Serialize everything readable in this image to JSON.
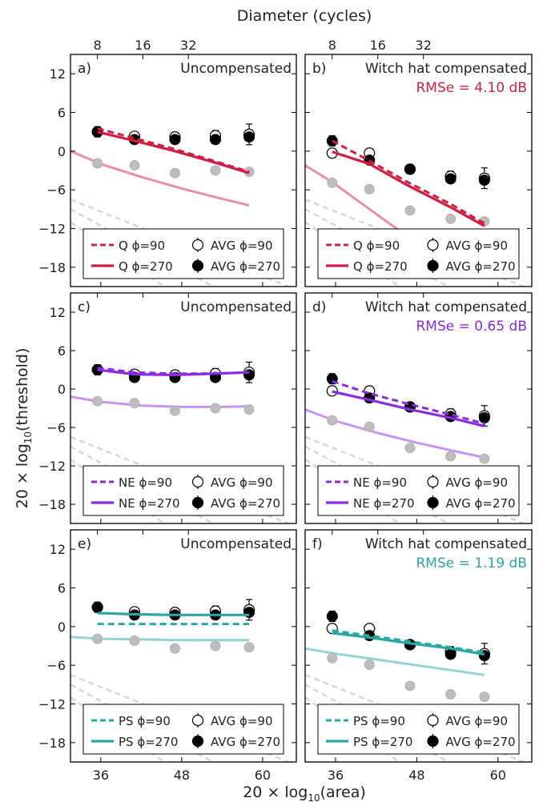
{
  "figure": {
    "top_axis_label": "Diameter (cycles)",
    "top_ticks": [
      8,
      16,
      32
    ],
    "ylabel_prefix": "20 × log",
    "ylabel_sub": "10",
    "ylabel_suffix": "(threshold)",
    "xlabel_prefix": "20 × log",
    "xlabel_sub": "10",
    "xlabel_suffix": "(area)",
    "x_ticks": [
      36,
      48,
      60
    ],
    "y_ticks": [
      12,
      6,
      0,
      -6,
      -12,
      -18
    ]
  },
  "chart_data": [
    {
      "type": "line",
      "panel": "a)",
      "title": "Uncompensated",
      "rmse": "",
      "model": "Q",
      "color": "#d11f41",
      "xlim": [
        31.5,
        65
      ],
      "ylim": [
        -21,
        15
      ],
      "legend": [
        "Q ϕ=90",
        "AVG ϕ=90",
        "Q ϕ=270",
        "AVG ϕ=270"
      ],
      "series": [
        {
          "name": "Q ϕ=90",
          "style": "dashed",
          "x": [
            35.5,
            41,
            47,
            53,
            58
          ],
          "y": [
            3.5,
            2.0,
            0.3,
            -1.6,
            -3.2
          ]
        },
        {
          "name": "Q ϕ=270",
          "style": "solid",
          "x": [
            35.5,
            41,
            47,
            53,
            58
          ],
          "y": [
            3.0,
            1.6,
            0.0,
            -1.8,
            -3.4
          ]
        },
        {
          "name": "",
          "style": "light",
          "x": [
            31.5,
            36,
            42,
            48,
            54,
            58
          ],
          "y": [
            0.0,
            -2.0,
            -4.0,
            -5.8,
            -7.4,
            -8.4
          ]
        },
        {
          "name": "AVG ϕ=90",
          "style": "open",
          "x": [
            35.5,
            41,
            47,
            53,
            58
          ],
          "y": [
            3.0,
            2.3,
            2.2,
            2.4,
            2.6
          ],
          "err": [
            0.6,
            0.6,
            0.7,
            0.8,
            1.6
          ]
        },
        {
          "name": "AVG ϕ=270",
          "style": "filled",
          "x": [
            35.5,
            41,
            47,
            53,
            58
          ],
          "y": [
            3.0,
            1.8,
            1.8,
            1.8,
            2.2
          ],
          "err": [
            0.8,
            0.5,
            0.5,
            0.5,
            0.6
          ]
        },
        {
          "name": "",
          "style": "gray",
          "x": [
            35.5,
            41,
            47,
            53,
            58
          ],
          "y": [
            -1.9,
            -2.2,
            -3.4,
            -3.0,
            -3.2
          ]
        }
      ]
    },
    {
      "type": "line",
      "panel": "b)",
      "title": "Witch hat compensated",
      "rmse": "RMSe = 4.10 dB",
      "model": "Q",
      "color": "#d11f41",
      "xlim": [
        31.5,
        65
      ],
      "ylim": [
        -21,
        15
      ],
      "legend": [
        "Q ϕ=90",
        "AVG ϕ=90",
        "Q ϕ=270",
        "AVG ϕ=270"
      ],
      "series": [
        {
          "name": "Q ϕ=90",
          "style": "dashed",
          "x": [
            35.5,
            41,
            47,
            53,
            58
          ],
          "y": [
            1.6,
            -1.5,
            -5.0,
            -8.2,
            -11.2
          ]
        },
        {
          "name": "Q ϕ=270",
          "style": "solid",
          "x": [
            35.5,
            41,
            47,
            53,
            58
          ],
          "y": [
            -0.1,
            -2.0,
            -5.5,
            -8.7,
            -11.6
          ]
        },
        {
          "name": "",
          "style": "light",
          "x": [
            31.5,
            35.5,
            41,
            47,
            52
          ],
          "y": [
            -2.2,
            -4.8,
            -9.0,
            -13.5,
            -17.5
          ]
        },
        {
          "name": "AVG ϕ=90",
          "style": "open",
          "x": [
            35.5,
            41,
            47,
            53,
            58
          ],
          "y": [
            -0.3,
            -0.3,
            -2.8,
            -3.9,
            -4.2
          ],
          "err": [
            0.6,
            0.6,
            0.7,
            0.8,
            1.6
          ]
        },
        {
          "name": "AVG ϕ=270",
          "style": "filled",
          "x": [
            35.5,
            41,
            47,
            53,
            58
          ],
          "y": [
            1.6,
            -1.4,
            -2.8,
            -4.3,
            -4.5
          ],
          "err": [
            0.8,
            0.5,
            0.5,
            0.5,
            0.6
          ]
        },
        {
          "name": "",
          "style": "gray",
          "x": [
            35.5,
            41,
            47,
            53,
            58
          ],
          "y": [
            -4.9,
            -5.9,
            -9.2,
            -10.5,
            -10.9
          ]
        }
      ]
    },
    {
      "type": "line",
      "panel": "c)",
      "title": "Uncompensated",
      "rmse": "",
      "model": "NE",
      "color": "#8a2be2",
      "xlim": [
        31.5,
        65
      ],
      "ylim": [
        -21,
        15
      ],
      "legend": [
        "NE ϕ=90",
        "AVG ϕ=90",
        "NE ϕ=270",
        "AVG ϕ=270"
      ],
      "series": [
        {
          "name": "NE ϕ=90",
          "style": "dashed",
          "x": [
            35.5,
            41,
            47,
            53,
            58
          ],
          "y": [
            3.3,
            2.6,
            2.4,
            2.4,
            2.6
          ]
        },
        {
          "name": "NE ϕ=270",
          "style": "solid",
          "x": [
            35.5,
            41,
            47,
            53,
            58
          ],
          "y": [
            3.0,
            2.3,
            2.2,
            2.4,
            2.6
          ]
        },
        {
          "name": "",
          "style": "light",
          "x": [
            31.5,
            36,
            42,
            48,
            54,
            58
          ],
          "y": [
            -1.2,
            -2.0,
            -2.6,
            -2.8,
            -2.8,
            -2.7
          ]
        },
        {
          "name": "AVG ϕ=90",
          "style": "open",
          "x": [
            35.5,
            41,
            47,
            53,
            58
          ],
          "y": [
            3.0,
            2.3,
            2.2,
            2.4,
            2.6
          ],
          "err": [
            0.6,
            0.6,
            0.7,
            0.8,
            1.6
          ]
        },
        {
          "name": "AVG ϕ=270",
          "style": "filled",
          "x": [
            35.5,
            41,
            47,
            53,
            58
          ],
          "y": [
            3.0,
            1.8,
            1.8,
            1.8,
            2.2
          ],
          "err": [
            0.8,
            0.5,
            0.5,
            0.5,
            0.6
          ]
        },
        {
          "name": "",
          "style": "gray",
          "x": [
            35.5,
            41,
            47,
            53,
            58
          ],
          "y": [
            -1.9,
            -2.2,
            -3.4,
            -3.0,
            -3.2
          ]
        }
      ]
    },
    {
      "type": "line",
      "panel": "d)",
      "title": "Witch hat compensated",
      "rmse": "RMSe = 0.65 dB",
      "model": "NE",
      "color": "#8a2be2",
      "xlim": [
        31.5,
        65
      ],
      "ylim": [
        -21,
        15
      ],
      "legend": [
        "NE ϕ=90",
        "AVG ϕ=90",
        "NE ϕ=270",
        "AVG ϕ=270"
      ],
      "series": [
        {
          "name": "NE ϕ=90",
          "style": "dashed",
          "x": [
            35.5,
            41,
            47,
            53,
            58
          ],
          "y": [
            1.2,
            -0.7,
            -2.4,
            -4.0,
            -5.4
          ]
        },
        {
          "name": "NE ϕ=270",
          "style": "solid",
          "x": [
            35.5,
            41,
            47,
            53,
            58
          ],
          "y": [
            -0.4,
            -1.7,
            -3.2,
            -4.5,
            -5.8
          ]
        },
        {
          "name": "",
          "style": "light",
          "x": [
            31.5,
            36,
            42,
            48,
            54,
            58
          ],
          "y": [
            -3.2,
            -5.0,
            -6.8,
            -8.4,
            -9.8,
            -10.7
          ]
        },
        {
          "name": "AVG ϕ=90",
          "style": "open",
          "x": [
            35.5,
            41,
            47,
            53,
            58
          ],
          "y": [
            -0.3,
            -0.3,
            -2.8,
            -3.9,
            -4.2
          ],
          "err": [
            0.6,
            0.6,
            0.7,
            0.8,
            1.6
          ]
        },
        {
          "name": "AVG ϕ=270",
          "style": "filled",
          "x": [
            35.5,
            41,
            47,
            53,
            58
          ],
          "y": [
            1.6,
            -1.4,
            -2.8,
            -4.3,
            -4.5
          ],
          "err": [
            0.8,
            0.5,
            0.5,
            0.5,
            0.6
          ]
        },
        {
          "name": "",
          "style": "gray",
          "x": [
            35.5,
            41,
            47,
            53,
            58
          ],
          "y": [
            -4.9,
            -5.9,
            -9.2,
            -10.5,
            -10.9
          ]
        }
      ]
    },
    {
      "type": "line",
      "panel": "e)",
      "title": "Uncompensated",
      "rmse": "",
      "model": "PS",
      "color": "#2aa6a0",
      "xlim": [
        31.5,
        65
      ],
      "ylim": [
        -21,
        15
      ],
      "legend": [
        "PS ϕ=90",
        "AVG ϕ=90",
        "PS ϕ=270",
        "AVG ϕ=270"
      ],
      "series": [
        {
          "name": "PS ϕ=90",
          "style": "dashed",
          "x": [
            35.5,
            41,
            47,
            53,
            58
          ],
          "y": [
            0.4,
            0.4,
            0.4,
            0.4,
            0.4
          ]
        },
        {
          "name": "PS ϕ=270",
          "style": "solid",
          "x": [
            35.5,
            41,
            47,
            53,
            58
          ],
          "y": [
            2.1,
            1.9,
            1.8,
            1.8,
            1.8
          ]
        },
        {
          "name": "",
          "style": "light",
          "x": [
            31.5,
            36,
            42,
            48,
            54,
            58
          ],
          "y": [
            -1.6,
            -1.9,
            -2.0,
            -2.1,
            -2.1,
            -2.1
          ]
        },
        {
          "name": "AVG ϕ=90",
          "style": "open",
          "x": [
            35.5,
            41,
            47,
            53,
            58
          ],
          "y": [
            3.0,
            2.3,
            2.2,
            2.4,
            2.6
          ],
          "err": [
            0.6,
            0.6,
            0.7,
            0.8,
            1.6
          ]
        },
        {
          "name": "AVG ϕ=270",
          "style": "filled",
          "x": [
            35.5,
            41,
            47,
            53,
            58
          ],
          "y": [
            3.0,
            1.8,
            1.8,
            1.8,
            2.2
          ],
          "err": [
            0.8,
            0.5,
            0.5,
            0.5,
            0.6
          ]
        },
        {
          "name": "",
          "style": "gray",
          "x": [
            35.5,
            41,
            47,
            53,
            58
          ],
          "y": [
            -1.9,
            -2.2,
            -3.4,
            -3.0,
            -3.2
          ]
        }
      ]
    },
    {
      "type": "line",
      "panel": "f)",
      "title": "Witch hat compensated",
      "rmse": "RMSe = 1.19 dB",
      "model": "PS",
      "color": "#2aa6a0",
      "xlim": [
        31.5,
        65
      ],
      "ylim": [
        -21,
        15
      ],
      "legend": [
        "PS ϕ=90",
        "AVG ϕ=90",
        "PS ϕ=270",
        "AVG ϕ=270"
      ],
      "series": [
        {
          "name": "PS ϕ=90",
          "style": "dashed",
          "x": [
            35.5,
            41,
            47,
            53,
            58
          ],
          "y": [
            -0.6,
            -1.4,
            -2.3,
            -3.2,
            -4.0
          ]
        },
        {
          "name": "PS ϕ=270",
          "style": "solid",
          "x": [
            35.5,
            41,
            47,
            53,
            58
          ],
          "y": [
            -1.0,
            -1.7,
            -2.6,
            -3.4,
            -4.3
          ]
        },
        {
          "name": "",
          "style": "light",
          "x": [
            31.5,
            36,
            42,
            48,
            54,
            58
          ],
          "y": [
            -3.4,
            -4.2,
            -5.1,
            -6.0,
            -6.9,
            -7.5
          ]
        },
        {
          "name": "AVG ϕ=90",
          "style": "open",
          "x": [
            35.5,
            41,
            47,
            53,
            58
          ],
          "y": [
            -0.3,
            -0.3,
            -2.8,
            -3.9,
            -4.2
          ],
          "err": [
            0.6,
            0.6,
            0.7,
            0.8,
            1.6
          ]
        },
        {
          "name": "AVG ϕ=270",
          "style": "filled",
          "x": [
            35.5,
            41,
            47,
            53,
            58
          ],
          "y": [
            1.6,
            -1.4,
            -2.8,
            -4.3,
            -4.5
          ],
          "err": [
            0.8,
            0.5,
            0.5,
            0.5,
            0.6
          ]
        },
        {
          "name": "",
          "style": "gray",
          "x": [
            35.5,
            41,
            47,
            53,
            58
          ],
          "y": [
            -4.9,
            -5.9,
            -9.2,
            -10.5,
            -10.9
          ]
        }
      ]
    }
  ]
}
